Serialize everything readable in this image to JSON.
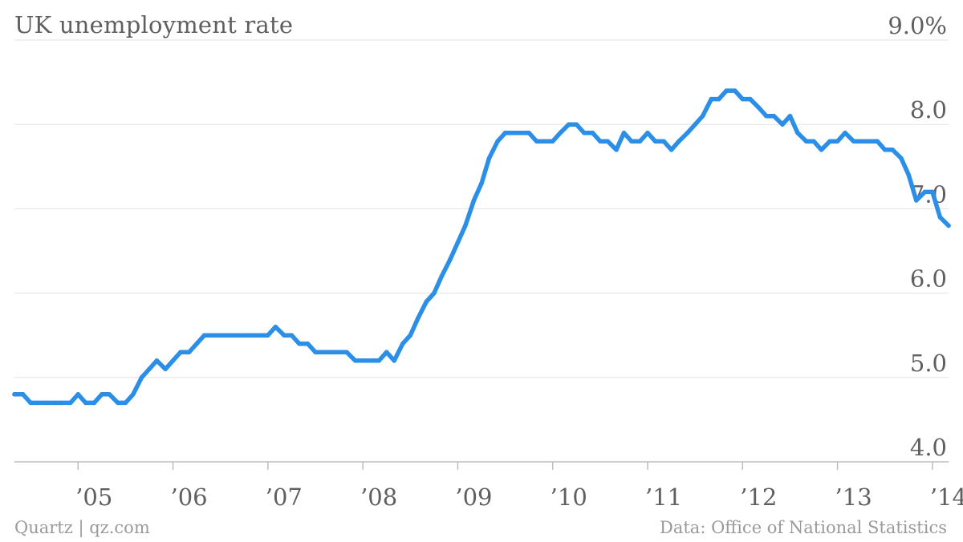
{
  "chart_data": {
    "type": "line",
    "title": "UK unemployment rate",
    "source_left": "Quartz | qz.com",
    "source_right": "Data: Office of National Statistics",
    "y_unit_top_label": "9.0%",
    "ylim": [
      4.0,
      9.0
    ],
    "y_ticks": [
      4.0,
      5.0,
      6.0,
      7.0,
      8.0,
      9.0
    ],
    "y_tick_labels": [
      "4.0",
      "5.0",
      "6.0",
      "7.0",
      "8.0",
      "9.0%"
    ],
    "y_axis_side": "right",
    "grid": true,
    "xlim": [
      2004.33,
      2014.17
    ],
    "x_ticks": [
      2005,
      2006,
      2007,
      2008,
      2009,
      2010,
      2011,
      2012,
      2013,
      2014
    ],
    "x_tick_labels": [
      "’05",
      "’06",
      "’07",
      "’08",
      "’09",
      "’10",
      "’11",
      "’12",
      "’13",
      "’14"
    ],
    "series": [
      {
        "color": "#2b8fe8",
        "x": [
          2004.33,
          2004.42,
          2004.5,
          2004.58,
          2004.67,
          2004.75,
          2004.83,
          2004.92,
          2005.0,
          2005.08,
          2005.17,
          2005.25,
          2005.33,
          2005.42,
          2005.5,
          2005.58,
          2005.67,
          2005.75,
          2005.83,
          2005.92,
          2006.0,
          2006.08,
          2006.17,
          2006.25,
          2006.33,
          2006.42,
          2006.5,
          2006.58,
          2006.67,
          2006.75,
          2006.83,
          2006.92,
          2007.0,
          2007.08,
          2007.17,
          2007.25,
          2007.33,
          2007.42,
          2007.5,
          2007.58,
          2007.67,
          2007.75,
          2007.83,
          2007.92,
          2008.0,
          2008.08,
          2008.17,
          2008.25,
          2008.33,
          2008.42,
          2008.5,
          2008.58,
          2008.67,
          2008.75,
          2008.83,
          2008.92,
          2009.0,
          2009.08,
          2009.17,
          2009.25,
          2009.33,
          2009.42,
          2009.5,
          2009.58,
          2009.67,
          2009.75,
          2009.83,
          2009.92,
          2010.0,
          2010.08,
          2010.17,
          2010.25,
          2010.33,
          2010.42,
          2010.5,
          2010.58,
          2010.67,
          2010.75,
          2010.83,
          2010.92,
          2011.0,
          2011.08,
          2011.17,
          2011.25,
          2011.33,
          2011.42,
          2011.5,
          2011.58,
          2011.67,
          2011.75,
          2011.83,
          2011.92,
          2012.0,
          2012.08,
          2012.17,
          2012.25,
          2012.33,
          2012.42,
          2012.5,
          2012.58,
          2012.67,
          2012.75,
          2012.83,
          2012.92,
          2013.0,
          2013.08,
          2013.17,
          2013.25,
          2013.33,
          2013.42,
          2013.5,
          2013.58,
          2013.67,
          2013.75,
          2013.83,
          2013.92,
          2014.0,
          2014.08,
          2014.17
        ],
        "values": [
          4.8,
          4.8,
          4.7,
          4.7,
          4.7,
          4.7,
          4.7,
          4.7,
          4.8,
          4.7,
          4.7,
          4.8,
          4.8,
          4.7,
          4.7,
          4.8,
          5.0,
          5.1,
          5.2,
          5.1,
          5.2,
          5.3,
          5.3,
          5.4,
          5.5,
          5.5,
          5.5,
          5.5,
          5.5,
          5.5,
          5.5,
          5.5,
          5.5,
          5.6,
          5.5,
          5.5,
          5.4,
          5.4,
          5.3,
          5.3,
          5.3,
          5.3,
          5.3,
          5.2,
          5.2,
          5.2,
          5.2,
          5.3,
          5.2,
          5.4,
          5.5,
          5.7,
          5.9,
          6.0,
          6.2,
          6.4,
          6.6,
          6.8,
          7.1,
          7.3,
          7.6,
          7.8,
          7.9,
          7.9,
          7.9,
          7.9,
          7.8,
          7.8,
          7.8,
          7.9,
          8.0,
          8.0,
          7.9,
          7.9,
          7.8,
          7.8,
          7.7,
          7.9,
          7.8,
          7.8,
          7.9,
          7.8,
          7.8,
          7.7,
          7.8,
          7.9,
          8.0,
          8.1,
          8.3,
          8.3,
          8.4,
          8.4,
          8.3,
          8.3,
          8.2,
          8.1,
          8.1,
          8.0,
          8.1,
          7.9,
          7.8,
          7.8,
          7.7,
          7.8,
          7.8,
          7.9,
          7.8,
          7.8,
          7.8,
          7.8,
          7.7,
          7.7,
          7.6,
          7.4,
          7.1,
          7.2,
          7.2,
          6.9,
          6.8
        ]
      }
    ]
  }
}
